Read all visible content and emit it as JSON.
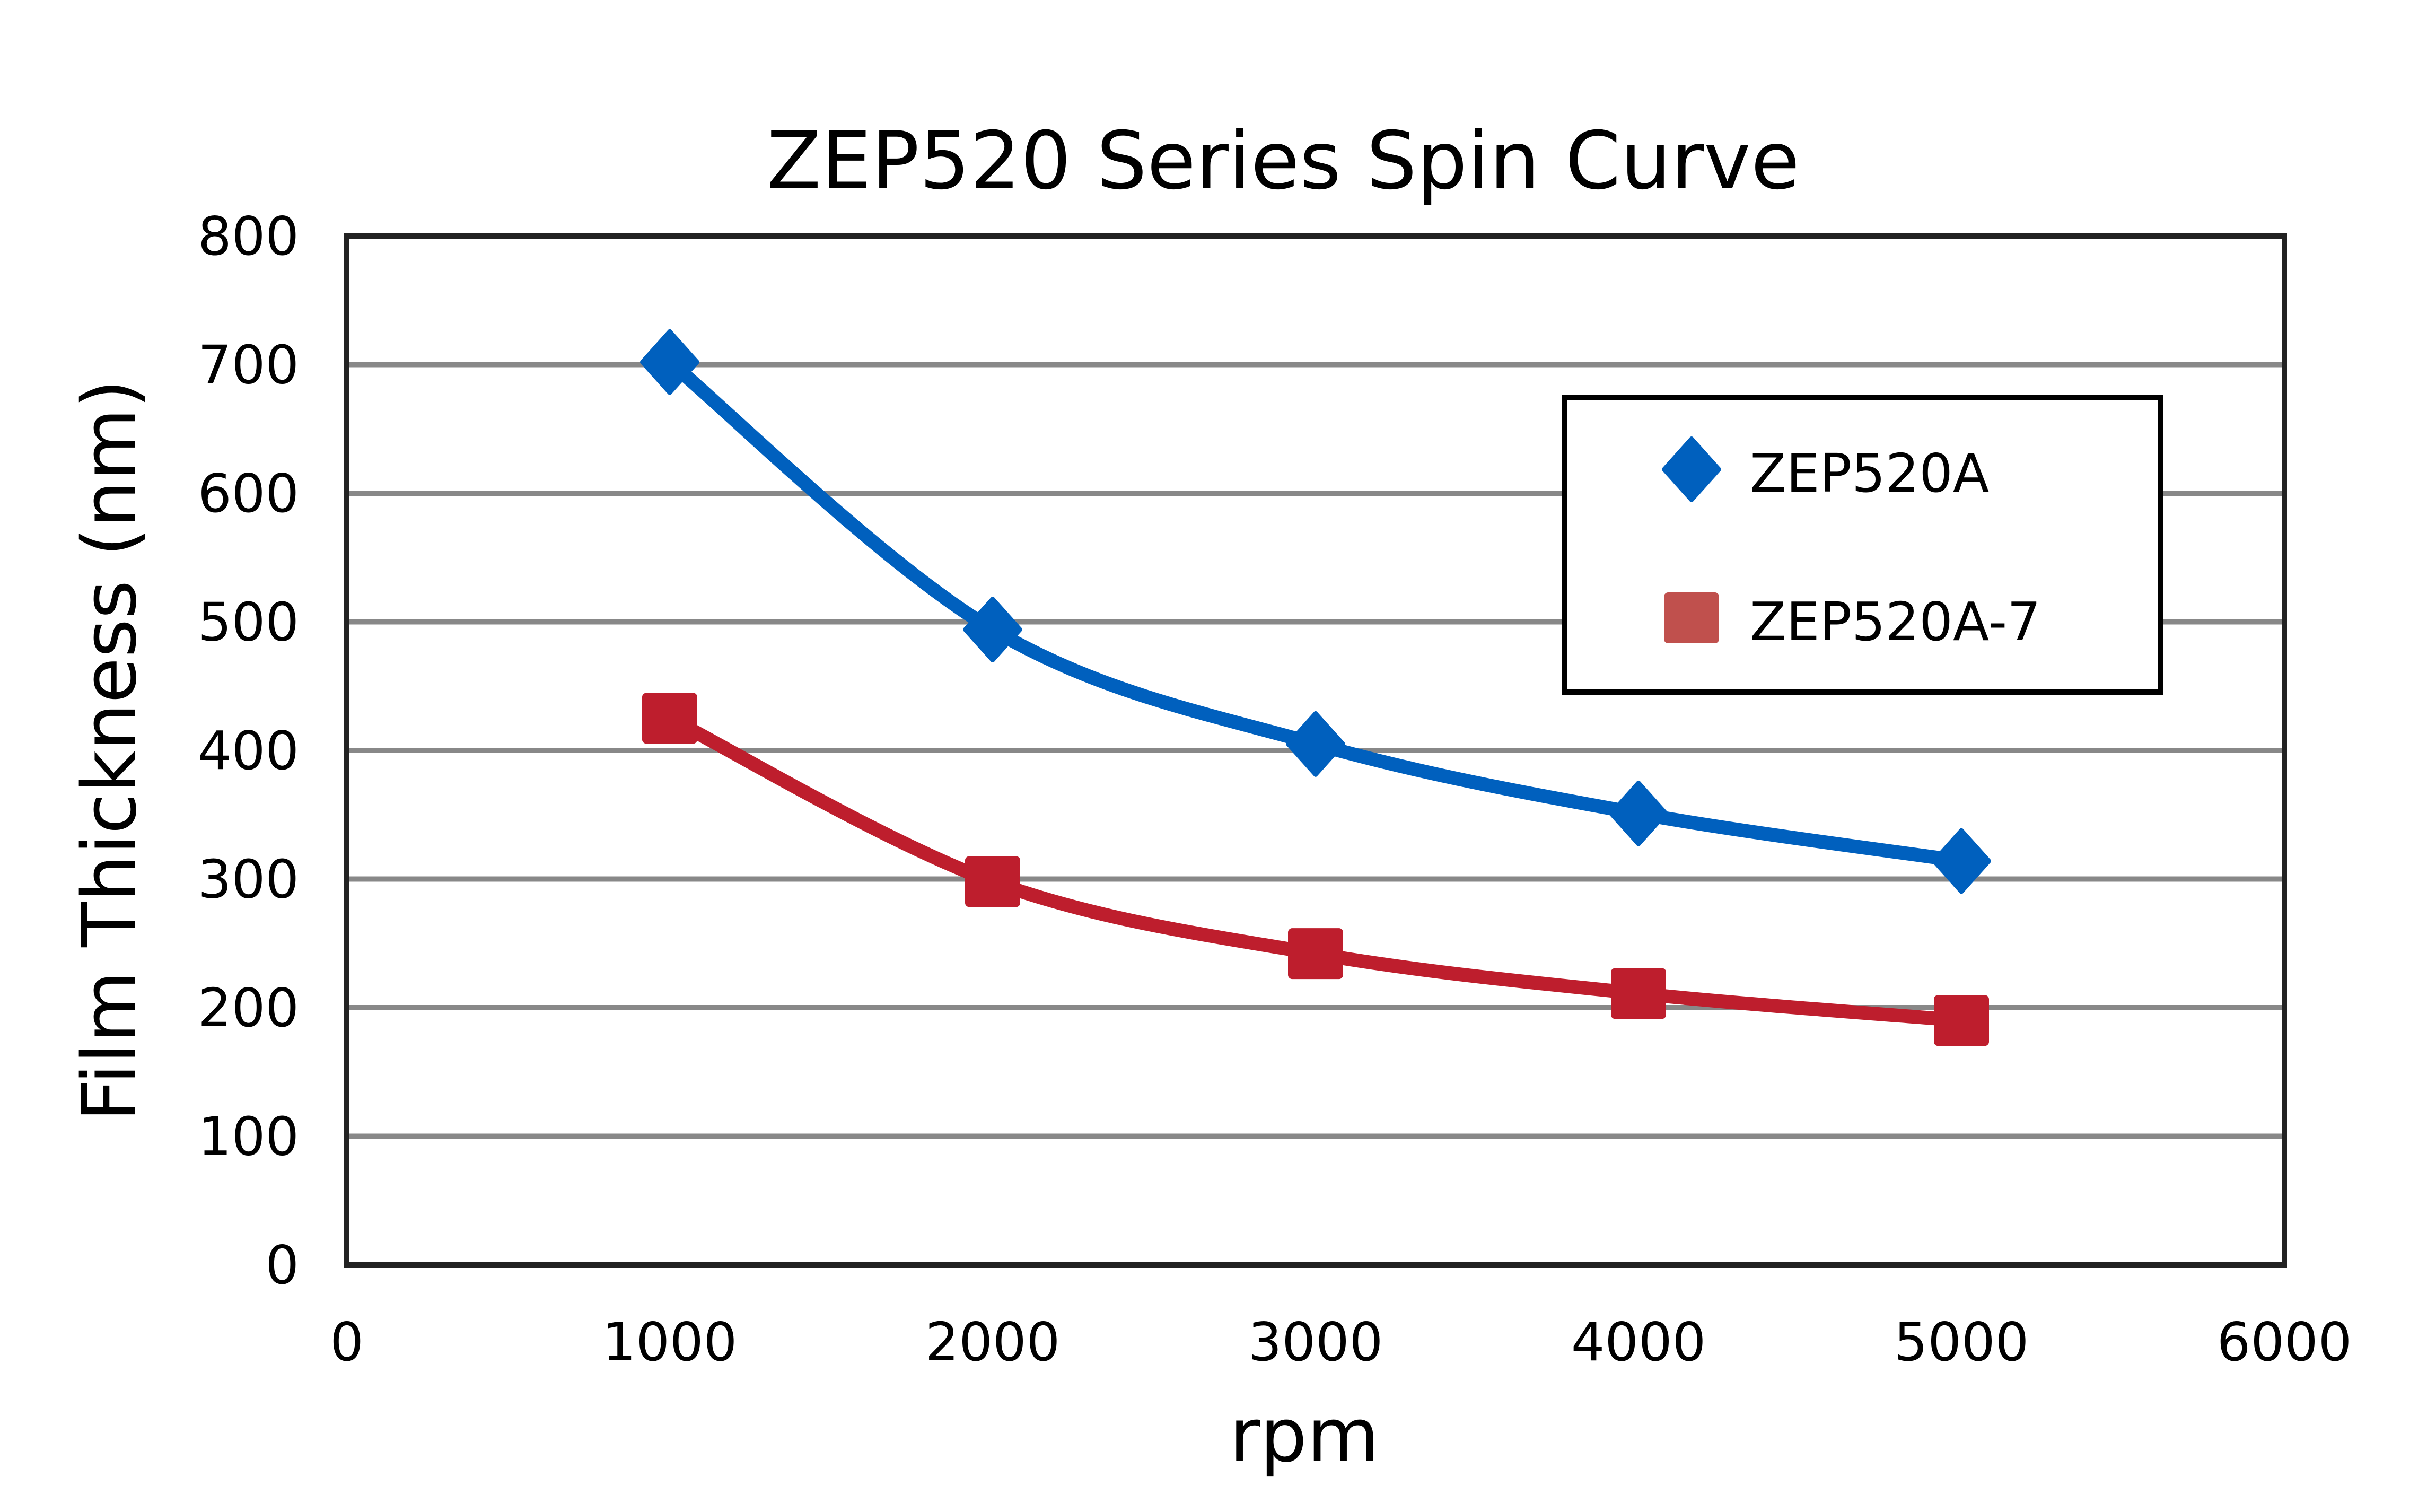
{
  "chart_data": {
    "type": "line",
    "title": "ZEP520 Series Spin Curve",
    "xlabel": "rpm",
    "ylabel": "Film Thickness (nm)",
    "xlim": [
      0,
      6000
    ],
    "ylim": [
      0,
      800
    ],
    "xticks": [
      0,
      1000,
      2000,
      3000,
      4000,
      5000,
      6000
    ],
    "yticks": [
      0,
      100,
      200,
      300,
      400,
      500,
      600,
      700,
      800
    ],
    "grid": "horizontal",
    "legend_position": "top-right",
    "series": [
      {
        "name": "ZEP520A",
        "marker": "diamond",
        "color": "#0060BE",
        "x": [
          1000,
          2000,
          3000,
          4000,
          5000
        ],
        "y": [
          702,
          494,
          405,
          351,
          314
        ]
      },
      {
        "name": "ZEP520A-7",
        "marker": "square",
        "color": "#BE1E2D",
        "legend_color": "#C0504D",
        "x": [
          1000,
          2000,
          3000,
          4000,
          5000
        ],
        "y": [
          425,
          298,
          242,
          211,
          190
        ]
      }
    ]
  }
}
